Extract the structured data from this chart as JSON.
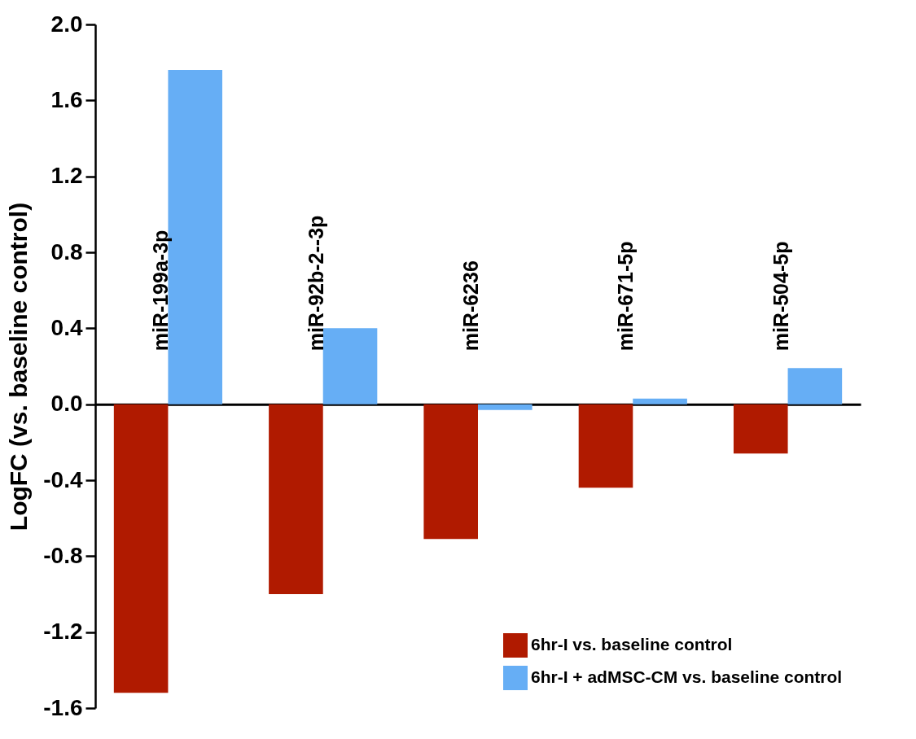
{
  "chart_data": {
    "type": "bar",
    "ylabel": "LogFC (vs. baseline control)",
    "categories": [
      "miR-199a-3p",
      "miR-92b-2--3p",
      "miR-6236",
      "miR-671-5p",
      "miR-504-5p"
    ],
    "series": [
      {
        "name": "6hr-I vs. baseline control",
        "color": "#b01a00",
        "values": [
          -1.52,
          -1.0,
          -0.71,
          -0.44,
          -0.26
        ]
      },
      {
        "name": "6hr-I + adMSC-CM vs. baseline control",
        "color": "#66aef5",
        "values": [
          1.76,
          0.4,
          -0.03,
          0.03,
          0.19
        ]
      }
    ],
    "ylim": [
      -1.6,
      2.0
    ],
    "yticks": [
      {
        "value": -1.6,
        "label": "-1.6"
      },
      {
        "value": -1.2,
        "label": "-1.2"
      },
      {
        "value": -0.8,
        "label": "-0.8"
      },
      {
        "value": -0.4,
        "label": "-0.4"
      },
      {
        "value": 0,
        "label": "0.0"
      },
      {
        "value": 0.4,
        "label": "0.4"
      },
      {
        "value": 0.8,
        "label": "0.8"
      },
      {
        "value": 1.2,
        "label": "1.2"
      },
      {
        "value": 1.6,
        "label": "1.6"
      },
      {
        "value": 2,
        "label": "2.0"
      }
    ],
    "legend": "bottom right"
  }
}
